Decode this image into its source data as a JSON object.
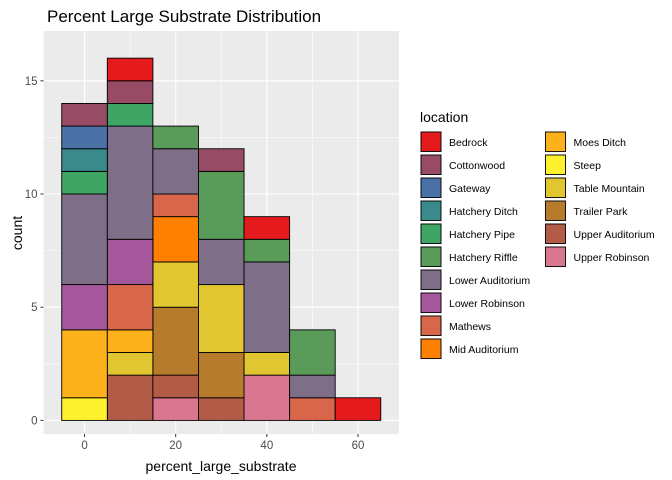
{
  "chart_data": {
    "type": "bar",
    "stacked": true,
    "histogram": true,
    "title": "Percent Large Substrate Distribution",
    "xlabel": "percent_large_substrate",
    "ylabel": "count",
    "xlim": [
      -9,
      69
    ],
    "ylim": [
      -0.6,
      17.2
    ],
    "x_ticks": [
      0,
      20,
      40,
      60
    ],
    "y_ticks": [
      0,
      5,
      10,
      15
    ],
    "bin_width": 10,
    "bin_centers": [
      0,
      10,
      20,
      30,
      40,
      50,
      60
    ],
    "legend_title": "location",
    "legend_position": "right",
    "grid": true,
    "background": "#ebebeb",
    "series": [
      {
        "name": "Bedrock",
        "color": "#e41a1c",
        "values": [
          0,
          1,
          0,
          0,
          1,
          0,
          1
        ]
      },
      {
        "name": "Cottonwood",
        "color": "#984b65",
        "values": [
          1,
          1,
          0,
          1,
          0,
          0,
          0
        ]
      },
      {
        "name": "Gateway",
        "color": "#4a72a6",
        "values": [
          1,
          0,
          0,
          0,
          0,
          0,
          0
        ]
      },
      {
        "name": "Hatchery Ditch",
        "color": "#3a8a8c",
        "values": [
          1,
          0,
          0,
          0,
          0,
          0,
          0
        ]
      },
      {
        "name": "Hatchery Pipe",
        "color": "#3fa565",
        "values": [
          1,
          1,
          0,
          0,
          0,
          0,
          0
        ]
      },
      {
        "name": "Hatchery Riffle",
        "color": "#5b9b5a",
        "values": [
          0,
          0,
          1,
          3,
          1,
          2,
          0
        ]
      },
      {
        "name": "Lower Auditorium",
        "color": "#7e6e87",
        "values": [
          4,
          5,
          2,
          2,
          4,
          1,
          0
        ]
      },
      {
        "name": "Lower Robinson",
        "color": "#a4579b",
        "values": [
          2,
          2,
          0,
          0,
          0,
          0,
          0
        ]
      },
      {
        "name": "Mathews",
        "color": "#d8664a",
        "values": [
          0,
          2,
          1,
          0,
          0,
          1,
          0
        ]
      },
      {
        "name": "Mid Auditorium",
        "color": "#ff7f00",
        "values": [
          0,
          0,
          2,
          0,
          0,
          0,
          0
        ]
      },
      {
        "name": "Moes Ditch",
        "color": "#fdb21b",
        "values": [
          3,
          1,
          0,
          0,
          0,
          0,
          0
        ]
      },
      {
        "name": "Steep",
        "color": "#fdf12f",
        "values": [
          1,
          0,
          0,
          0,
          0,
          0,
          0
        ]
      },
      {
        "name": "Table Mountain",
        "color": "#e1c631",
        "values": [
          0,
          1,
          2,
          3,
          1,
          0,
          0
        ]
      },
      {
        "name": "Trailer Park",
        "color": "#b77b2c",
        "values": [
          0,
          0,
          3,
          2,
          0,
          0,
          0
        ]
      },
      {
        "name": "Upper Auditorium",
        "color": "#b25c48",
        "values": [
          0,
          2,
          1,
          1,
          0,
          0,
          0
        ]
      },
      {
        "name": "Upper Robinson",
        "color": "#da7790",
        "values": [
          0,
          0,
          1,
          0,
          2,
          0,
          0
        ]
      }
    ]
  }
}
